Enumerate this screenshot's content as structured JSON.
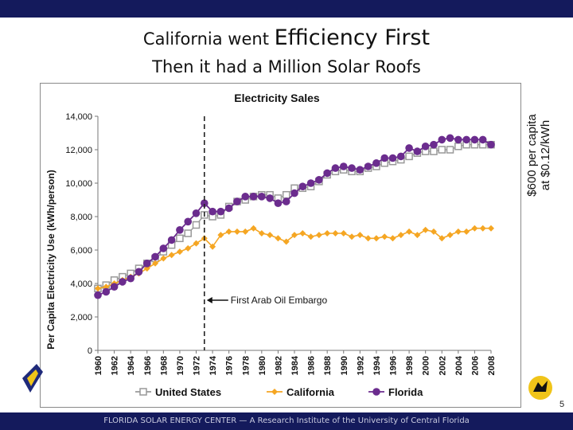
{
  "slide": {
    "title_part1": "California went ",
    "title_part2": "Efficiency First",
    "title_line2": "Then it had a Million Solar Roofs",
    "side_note_line1": "$600 per capita",
    "side_note_line2": "at $0.12/kWh",
    "page_number": "5",
    "footer": "FLORIDA SOLAR ENERGY CENTER — A Research Institute of the University of Central Florida",
    "colors": {
      "top_bar": "#141a5c",
      "bottom_bar": "#141a5c"
    }
  },
  "chart_data": {
    "type": "line",
    "title": "Electricity Sales",
    "ylabel": "Per Capita Electricity Use (kWh/person)",
    "xlabel": "",
    "ylim": [
      0,
      14000
    ],
    "yticks": [
      0,
      2000,
      4000,
      6000,
      8000,
      10000,
      12000,
      14000
    ],
    "ytick_labels": [
      "0",
      "2,000",
      "4,000",
      "6,000",
      "8,000",
      "10,000",
      "12,000",
      "14,000"
    ],
    "xlim": [
      1960,
      2008
    ],
    "xticks": [
      "1960",
      "1962",
      "1964",
      "1966",
      "1968",
      "1970",
      "1972",
      "1974",
      "1976",
      "1978",
      "1980",
      "1982",
      "1984",
      "1986",
      "1988",
      "1990",
      "1992",
      "1994",
      "1996",
      "1998",
      "2000",
      "2002",
      "2004",
      "2006",
      "2008"
    ],
    "grid": false,
    "legend_position": "bottom",
    "annotation": {
      "text": "First Arab Oil Embargo",
      "x": 1973,
      "y": 3000,
      "vline_x": 1973
    },
    "series": [
      {
        "name": "United States",
        "color": "#999999",
        "marker": "square-open",
        "x": [
          1960,
          1961,
          1962,
          1963,
          1964,
          1965,
          1966,
          1967,
          1968,
          1969,
          1970,
          1971,
          1972,
          1973,
          1974,
          1975,
          1976,
          1977,
          1978,
          1979,
          1980,
          1981,
          1982,
          1983,
          1984,
          1985,
          1986,
          1987,
          1988,
          1989,
          1990,
          1991,
          1992,
          1993,
          1994,
          1995,
          1996,
          1997,
          1998,
          1999,
          2000,
          2001,
          2002,
          2003,
          2004,
          2005,
          2006,
          2007,
          2008
        ],
        "values": [
          3700,
          3900,
          4200,
          4400,
          4600,
          4900,
          5200,
          5500,
          5900,
          6300,
          6700,
          7000,
          7500,
          8100,
          8000,
          8100,
          8600,
          8900,
          9000,
          9200,
          9300,
          9300,
          9100,
          9300,
          9700,
          9700,
          9800,
          10100,
          10500,
          10700,
          10800,
          10700,
          10700,
          10900,
          11000,
          11200,
          11300,
          11400,
          11600,
          11800,
          11900,
          11900,
          12000,
          12000,
          12200,
          12300,
          12300,
          12300,
          12300
        ]
      },
      {
        "name": "California",
        "color": "#f5a623",
        "marker": "diamond",
        "x": [
          1960,
          1961,
          1962,
          1963,
          1964,
          1965,
          1966,
          1967,
          1968,
          1969,
          1970,
          1971,
          1972,
          1973,
          1974,
          1975,
          1976,
          1977,
          1978,
          1979,
          1980,
          1981,
          1982,
          1983,
          1984,
          1985,
          1986,
          1987,
          1988,
          1989,
          1990,
          1991,
          1992,
          1993,
          1994,
          1995,
          1996,
          1997,
          1998,
          1999,
          2000,
          2001,
          2002,
          2003,
          2004,
          2005,
          2006,
          2007,
          2008
        ],
        "values": [
          3700,
          3800,
          4000,
          4200,
          4400,
          4600,
          4900,
          5200,
          5500,
          5700,
          5900,
          6100,
          6400,
          6700,
          6200,
          6900,
          7100,
          7100,
          7100,
          7300,
          7000,
          6900,
          6700,
          6500,
          6900,
          7000,
          6800,
          6900,
          7000,
          7000,
          7000,
          6800,
          6900,
          6700,
          6700,
          6800,
          6700,
          6900,
          7100,
          6900,
          7200,
          7100,
          6700,
          6900,
          7100,
          7100,
          7300,
          7300,
          7300
        ]
      },
      {
        "name": "Florida",
        "color": "#6b2c8e",
        "marker": "circle",
        "x": [
          1960,
          1961,
          1962,
          1963,
          1964,
          1965,
          1966,
          1967,
          1968,
          1969,
          1970,
          1971,
          1972,
          1973,
          1974,
          1975,
          1976,
          1977,
          1978,
          1979,
          1980,
          1981,
          1982,
          1983,
          1984,
          1985,
          1986,
          1987,
          1988,
          1989,
          1990,
          1991,
          1992,
          1993,
          1994,
          1995,
          1996,
          1997,
          1998,
          1999,
          2000,
          2001,
          2002,
          2003,
          2004,
          2005,
          2006,
          2007,
          2008
        ],
        "values": [
          3300,
          3500,
          3800,
          4100,
          4300,
          4700,
          5200,
          5600,
          6100,
          6600,
          7200,
          7700,
          8200,
          8800,
          8300,
          8300,
          8500,
          8900,
          9200,
          9200,
          9200,
          9100,
          8800,
          8900,
          9400,
          9800,
          10000,
          10200,
          10600,
          10900,
          11000,
          10900,
          10800,
          11000,
          11200,
          11500,
          11500,
          11600,
          12100,
          11900,
          12200,
          12300,
          12600,
          12700,
          12600,
          12600,
          12600,
          12600,
          12300
        ]
      }
    ]
  }
}
